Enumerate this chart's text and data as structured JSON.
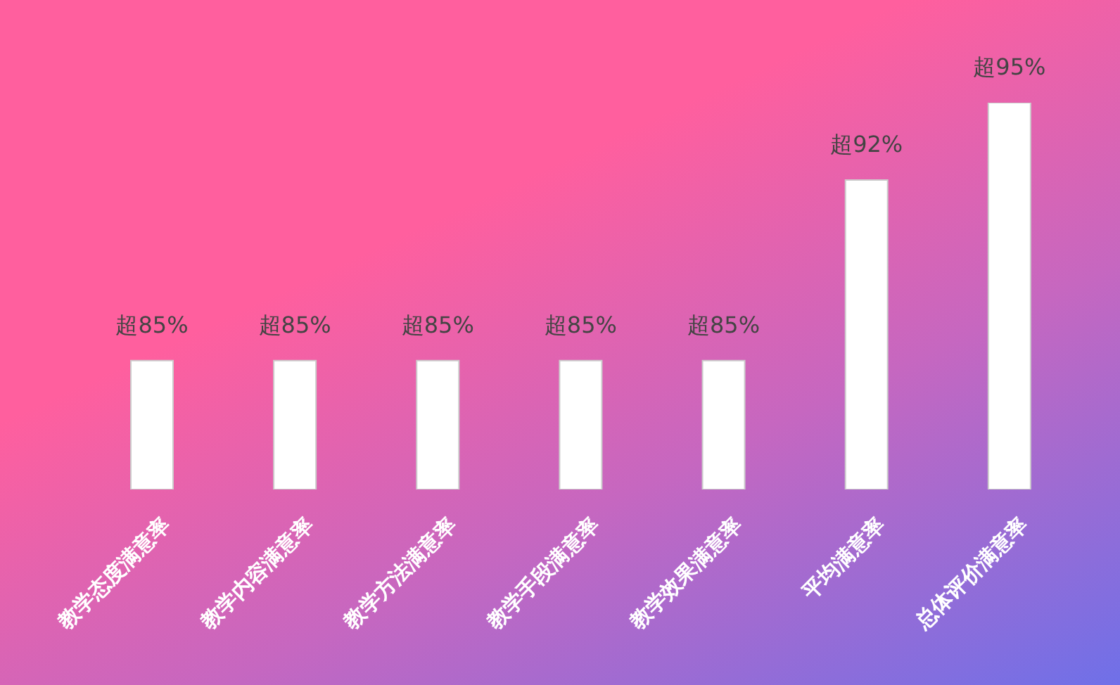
{
  "chart_data": {
    "type": "bar",
    "ylim": [
      80,
      95
    ],
    "categories": [
      "教学态度满意率",
      "教学内容满意率",
      "教学方法满意率",
      "教学手段满意率",
      "教学效果满意率",
      "平均满意率",
      "总体评价满意率"
    ],
    "values": [
      85,
      85,
      85,
      85,
      85,
      92,
      95
    ],
    "value_labels": [
      "超85%",
      "超85%",
      "超85%",
      "超85%",
      "超85%",
      "超92%",
      "超95%"
    ],
    "color": "#ffffff"
  }
}
